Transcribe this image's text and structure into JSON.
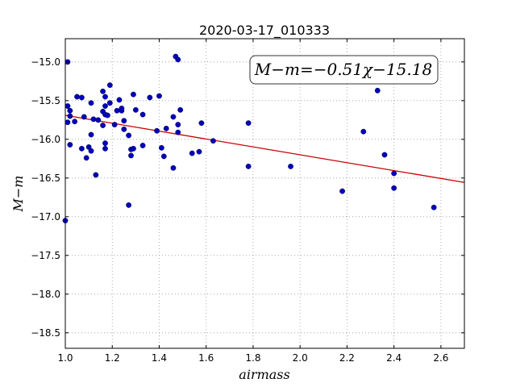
{
  "chart_data": {
    "type": "scatter",
    "title": "2020-03-17_010333",
    "xlabel": "airmass",
    "ylabel": "M−m",
    "xlim": [
      1.0,
      2.7
    ],
    "ylim": [
      -18.7,
      -14.7
    ],
    "x_ticks": [
      1.0,
      1.2,
      1.4,
      1.6,
      1.8,
      2.0,
      2.2,
      2.4,
      2.6
    ],
    "x_tick_labels": [
      "1.0",
      "1.2",
      "1.4",
      "1.6",
      "1.8",
      "2.0",
      "2.2",
      "2.4",
      "2.6"
    ],
    "y_ticks": [
      -15.0,
      -15.5,
      -16.0,
      -16.5,
      -17.0,
      -17.5,
      -18.0,
      -18.5
    ],
    "y_tick_labels": [
      "−15.0",
      "−15.5",
      "−16.0",
      "−16.5",
      "−17.0",
      "−17.5",
      "−18.0",
      "−18.5"
    ],
    "grid": true,
    "annotation": "M−m=−0.51χ−15.18",
    "fit": {
      "slope": -0.51,
      "intercept": -15.18,
      "color": "#cc0000"
    },
    "point_color": "#0000bb",
    "points": [
      [
        1.0,
        -17.05
      ],
      [
        1.01,
        -15.0
      ],
      [
        1.01,
        -15.57
      ],
      [
        1.01,
        -15.78
      ],
      [
        1.02,
        -15.63
      ],
      [
        1.02,
        -15.7
      ],
      [
        1.02,
        -16.07
      ],
      [
        1.04,
        -15.77
      ],
      [
        1.05,
        -15.45
      ],
      [
        1.07,
        -15.46
      ],
      [
        1.07,
        -16.12
      ],
      [
        1.08,
        -15.71
      ],
      [
        1.09,
        -16.24
      ],
      [
        1.1,
        -16.1
      ],
      [
        1.11,
        -15.53
      ],
      [
        1.11,
        -15.94
      ],
      [
        1.11,
        -16.15
      ],
      [
        1.12,
        -15.74
      ],
      [
        1.13,
        -16.46
      ],
      [
        1.14,
        -15.75
      ],
      [
        1.16,
        -15.82
      ],
      [
        1.16,
        -15.64
      ],
      [
        1.16,
        -15.38
      ],
      [
        1.17,
        -15.45
      ],
      [
        1.17,
        -15.57
      ],
      [
        1.17,
        -15.68
      ],
      [
        1.17,
        -16.05
      ],
      [
        1.17,
        -16.12
      ],
      [
        1.18,
        -15.69
      ],
      [
        1.19,
        -15.3
      ],
      [
        1.19,
        -15.53
      ],
      [
        1.21,
        -15.81
      ],
      [
        1.22,
        -15.63
      ],
      [
        1.23,
        -15.49
      ],
      [
        1.24,
        -15.63
      ],
      [
        1.24,
        -15.6
      ],
      [
        1.25,
        -15.76
      ],
      [
        1.25,
        -15.87
      ],
      [
        1.27,
        -16.85
      ],
      [
        1.27,
        -15.95
      ],
      [
        1.28,
        -16.13
      ],
      [
        1.28,
        -16.21
      ],
      [
        1.29,
        -16.12
      ],
      [
        1.29,
        -15.42
      ],
      [
        1.3,
        -15.62
      ],
      [
        1.33,
        -16.08
      ],
      [
        1.33,
        -15.68
      ],
      [
        1.36,
        -15.46
      ],
      [
        1.39,
        -15.89
      ],
      [
        1.4,
        -15.44
      ],
      [
        1.41,
        -16.11
      ],
      [
        1.42,
        -16.22
      ],
      [
        1.43,
        -15.86
      ],
      [
        1.46,
        -15.71
      ],
      [
        1.46,
        -16.37
      ],
      [
        1.47,
        -14.93
      ],
      [
        1.48,
        -14.97
      ],
      [
        1.48,
        -15.91
      ],
      [
        1.48,
        -15.81
      ],
      [
        1.49,
        -15.62
      ],
      [
        1.54,
        -16.18
      ],
      [
        1.57,
        -16.16
      ],
      [
        1.58,
        -15.79
      ],
      [
        1.63,
        -16.02
      ],
      [
        1.78,
        -15.79
      ],
      [
        1.78,
        -16.35
      ],
      [
        1.96,
        -16.35
      ],
      [
        2.18,
        -16.67
      ],
      [
        2.27,
        -15.9
      ],
      [
        2.33,
        -15.37
      ],
      [
        2.36,
        -16.2
      ],
      [
        2.4,
        -16.63
      ],
      [
        2.4,
        -16.44
      ],
      [
        2.57,
        -16.88
      ]
    ]
  }
}
